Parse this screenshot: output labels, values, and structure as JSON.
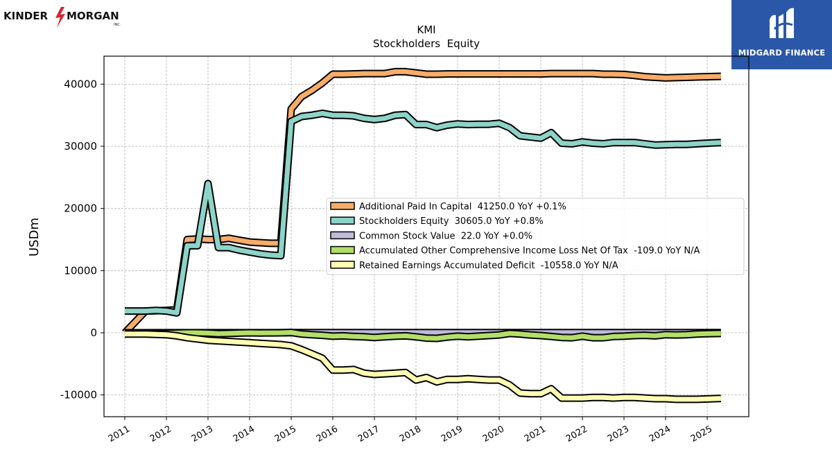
{
  "branding": {
    "left_logo_text_1": "KINDER",
    "left_logo_text_2": "MORGAN",
    "left_logo_sub": "INC.",
    "right_logo_text": "MIDGARD FINANCE",
    "right_logo_bg": "#2b57a8"
  },
  "chart_data": {
    "type": "line",
    "title": "KMI",
    "subtitle": "Stockholders  Equity",
    "ylabel": "USDm",
    "xlabel": "",
    "xlim": [
      2010.5,
      2026.0
    ],
    "ylim": [
      -13500,
      44500
    ],
    "yticks": [
      -10000,
      0,
      10000,
      20000,
      30000,
      40000
    ],
    "xticks": [
      "2011",
      "2012",
      "2013",
      "2014",
      "2015",
      "2016",
      "2017",
      "2018",
      "2019",
      "2020",
      "2021",
      "2022",
      "2023",
      "2024",
      "2025"
    ],
    "grid": true,
    "legend_position": "center-right",
    "series": [
      {
        "name": "Additional Paid In Capital  41250.0 YoY +0.1%",
        "color": "#f7ac6a",
        "points": [
          [
            2011.0,
            0
          ],
          [
            2011.5,
            3500
          ],
          [
            2012.0,
            3600
          ],
          [
            2012.25,
            3700
          ],
          [
            2012.5,
            15000
          ],
          [
            2012.75,
            15100
          ],
          [
            2013.0,
            15000
          ],
          [
            2013.25,
            15000
          ],
          [
            2013.5,
            15200
          ],
          [
            2013.75,
            14900
          ],
          [
            2014.0,
            14600
          ],
          [
            2014.25,
            14500
          ],
          [
            2014.5,
            14400
          ],
          [
            2014.75,
            14400
          ],
          [
            2015.0,
            36000
          ],
          [
            2015.25,
            38000
          ],
          [
            2015.5,
            39000
          ],
          [
            2015.75,
            40200
          ],
          [
            2016.0,
            41600
          ],
          [
            2016.25,
            41600
          ],
          [
            2016.5,
            41650
          ],
          [
            2016.75,
            41700
          ],
          [
            2017.0,
            41700
          ],
          [
            2017.25,
            41700
          ],
          [
            2017.5,
            42000
          ],
          [
            2017.75,
            42000
          ],
          [
            2018.0,
            41800
          ],
          [
            2018.25,
            41600
          ],
          [
            2018.5,
            41600
          ],
          [
            2018.75,
            41650
          ],
          [
            2019.0,
            41650
          ],
          [
            2019.25,
            41650
          ],
          [
            2019.5,
            41650
          ],
          [
            2019.75,
            41650
          ],
          [
            2020.0,
            41650
          ],
          [
            2020.25,
            41650
          ],
          [
            2020.5,
            41650
          ],
          [
            2020.75,
            41650
          ],
          [
            2021.0,
            41650
          ],
          [
            2021.25,
            41700
          ],
          [
            2021.5,
            41700
          ],
          [
            2021.75,
            41700
          ],
          [
            2022.0,
            41700
          ],
          [
            2022.25,
            41700
          ],
          [
            2022.5,
            41600
          ],
          [
            2022.75,
            41600
          ],
          [
            2023.0,
            41550
          ],
          [
            2023.25,
            41400
          ],
          [
            2023.5,
            41200
          ],
          [
            2023.75,
            41100
          ],
          [
            2024.0,
            41000
          ],
          [
            2024.25,
            41050
          ],
          [
            2024.5,
            41100
          ],
          [
            2024.75,
            41150
          ],
          [
            2025.0,
            41200
          ],
          [
            2025.33,
            41250
          ]
        ]
      },
      {
        "name": "Stockholders Equity  30605.0 YoY +0.8%",
        "color": "#8dd3c7",
        "points": [
          [
            2011.0,
            3500
          ],
          [
            2011.5,
            3500
          ],
          [
            2011.75,
            3600
          ],
          [
            2012.0,
            3500
          ],
          [
            2012.25,
            3200
          ],
          [
            2012.5,
            14000
          ],
          [
            2012.75,
            14000
          ],
          [
            2013.0,
            24000
          ],
          [
            2013.25,
            13700
          ],
          [
            2013.5,
            13700
          ],
          [
            2013.75,
            13300
          ],
          [
            2014.0,
            13000
          ],
          [
            2014.25,
            12700
          ],
          [
            2014.5,
            12500
          ],
          [
            2014.75,
            12400
          ],
          [
            2015.0,
            34000
          ],
          [
            2015.25,
            34800
          ],
          [
            2015.5,
            35000
          ],
          [
            2015.75,
            35300
          ],
          [
            2016.0,
            35000
          ],
          [
            2016.25,
            35000
          ],
          [
            2016.5,
            34900
          ],
          [
            2016.75,
            34500
          ],
          [
            2017.0,
            34300
          ],
          [
            2017.25,
            34500
          ],
          [
            2017.5,
            35000
          ],
          [
            2017.75,
            35100
          ],
          [
            2018.0,
            33500
          ],
          [
            2018.25,
            33500
          ],
          [
            2018.5,
            33000
          ],
          [
            2018.75,
            33400
          ],
          [
            2019.0,
            33600
          ],
          [
            2019.25,
            33500
          ],
          [
            2019.5,
            33550
          ],
          [
            2019.75,
            33550
          ],
          [
            2020.0,
            33700
          ],
          [
            2020.25,
            33000
          ],
          [
            2020.5,
            31700
          ],
          [
            2020.75,
            31500
          ],
          [
            2021.0,
            31300
          ],
          [
            2021.25,
            32200
          ],
          [
            2021.5,
            30500
          ],
          [
            2021.75,
            30400
          ],
          [
            2022.0,
            30700
          ],
          [
            2022.25,
            30500
          ],
          [
            2022.5,
            30400
          ],
          [
            2022.75,
            30600
          ],
          [
            2023.0,
            30600
          ],
          [
            2023.25,
            30600
          ],
          [
            2023.5,
            30400
          ],
          [
            2023.75,
            30200
          ],
          [
            2024.0,
            30250
          ],
          [
            2024.25,
            30300
          ],
          [
            2024.5,
            30300
          ],
          [
            2024.75,
            30400
          ],
          [
            2025.0,
            30500
          ],
          [
            2025.33,
            30605
          ]
        ]
      },
      {
        "name": "Common Stock Value  22.0 YoY +0.0%",
        "color": "#bebada",
        "points": [
          [
            2011.0,
            0
          ],
          [
            2012.0,
            10
          ],
          [
            2013.0,
            10
          ],
          [
            2014.0,
            10
          ],
          [
            2015.0,
            21
          ],
          [
            2016.0,
            22
          ],
          [
            2017.0,
            22
          ],
          [
            2018.0,
            22
          ],
          [
            2019.0,
            22
          ],
          [
            2020.0,
            22
          ],
          [
            2021.0,
            22
          ],
          [
            2022.0,
            22
          ],
          [
            2023.0,
            22
          ],
          [
            2024.0,
            22
          ],
          [
            2025.33,
            22
          ]
        ]
      },
      {
        "name": "Accumulated Other Comprehensive Income Loss Net Of Tax  -109.0 YoY N/A",
        "color": "#b3de69",
        "points": [
          [
            2011.0,
            -100
          ],
          [
            2011.5,
            0
          ],
          [
            2012.0,
            -100
          ],
          [
            2012.25,
            -50
          ],
          [
            2012.5,
            0
          ],
          [
            2012.75,
            0
          ],
          [
            2013.0,
            -50
          ],
          [
            2013.25,
            -150
          ],
          [
            2013.5,
            -100
          ],
          [
            2013.75,
            -50
          ],
          [
            2014.0,
            0
          ],
          [
            2014.25,
            -30
          ],
          [
            2014.5,
            -20
          ],
          [
            2014.75,
            0
          ],
          [
            2015.0,
            50
          ],
          [
            2015.25,
            -200
          ],
          [
            2015.5,
            -300
          ],
          [
            2015.75,
            -400
          ],
          [
            2016.0,
            -550
          ],
          [
            2016.25,
            -500
          ],
          [
            2016.5,
            -600
          ],
          [
            2016.75,
            -650
          ],
          [
            2017.0,
            -750
          ],
          [
            2017.25,
            -650
          ],
          [
            2017.5,
            -550
          ],
          [
            2017.75,
            -500
          ],
          [
            2018.0,
            -650
          ],
          [
            2018.25,
            -850
          ],
          [
            2018.5,
            -900
          ],
          [
            2018.75,
            -700
          ],
          [
            2019.0,
            -550
          ],
          [
            2019.25,
            -650
          ],
          [
            2019.5,
            -550
          ],
          [
            2019.75,
            -450
          ],
          [
            2020.0,
            -350
          ],
          [
            2020.25,
            -100
          ],
          [
            2020.5,
            -200
          ],
          [
            2020.75,
            -350
          ],
          [
            2021.0,
            -450
          ],
          [
            2021.25,
            -600
          ],
          [
            2021.5,
            -750
          ],
          [
            2021.75,
            -800
          ],
          [
            2022.0,
            -550
          ],
          [
            2022.25,
            -800
          ],
          [
            2022.5,
            -800
          ],
          [
            2022.75,
            -600
          ],
          [
            2023.0,
            -550
          ],
          [
            2023.25,
            -450
          ],
          [
            2023.5,
            -400
          ],
          [
            2023.75,
            -500
          ],
          [
            2024.0,
            -300
          ],
          [
            2024.25,
            -350
          ],
          [
            2024.5,
            -300
          ],
          [
            2024.75,
            -200
          ],
          [
            2025.0,
            -150
          ],
          [
            2025.33,
            -109
          ]
        ]
      },
      {
        "name": "Retained Earnings Accumulated Deficit  -10558.0 YoY N/A",
        "color": "#ffffb3",
        "points": [
          [
            2011.0,
            -200
          ],
          [
            2011.5,
            -200
          ],
          [
            2012.0,
            -300
          ],
          [
            2012.25,
            -500
          ],
          [
            2012.5,
            -800
          ],
          [
            2012.75,
            -1000
          ],
          [
            2013.0,
            -1200
          ],
          [
            2013.25,
            -1300
          ],
          [
            2013.5,
            -1400
          ],
          [
            2013.75,
            -1500
          ],
          [
            2014.0,
            -1600
          ],
          [
            2014.25,
            -1700
          ],
          [
            2014.5,
            -1800
          ],
          [
            2014.75,
            -1900
          ],
          [
            2015.0,
            -2100
          ],
          [
            2015.25,
            -2700
          ],
          [
            2015.5,
            -3400
          ],
          [
            2015.75,
            -4100
          ],
          [
            2016.0,
            -6000
          ],
          [
            2016.25,
            -6000
          ],
          [
            2016.5,
            -5900
          ],
          [
            2016.75,
            -6500
          ],
          [
            2017.0,
            -6700
          ],
          [
            2017.25,
            -6600
          ],
          [
            2017.5,
            -6500
          ],
          [
            2017.75,
            -6400
          ],
          [
            2018.0,
            -7600
          ],
          [
            2018.25,
            -7200
          ],
          [
            2018.5,
            -7900
          ],
          [
            2018.75,
            -7500
          ],
          [
            2019.0,
            -7500
          ],
          [
            2019.25,
            -7400
          ],
          [
            2019.5,
            -7500
          ],
          [
            2019.75,
            -7600
          ],
          [
            2020.0,
            -7600
          ],
          [
            2020.25,
            -8400
          ],
          [
            2020.5,
            -9700
          ],
          [
            2020.75,
            -9800
          ],
          [
            2021.0,
            -9800
          ],
          [
            2021.25,
            -9000
          ],
          [
            2021.5,
            -10500
          ],
          [
            2021.75,
            -10500
          ],
          [
            2022.0,
            -10500
          ],
          [
            2022.25,
            -10400
          ],
          [
            2022.5,
            -10400
          ],
          [
            2022.75,
            -10500
          ],
          [
            2023.0,
            -10400
          ],
          [
            2023.25,
            -10400
          ],
          [
            2023.5,
            -10500
          ],
          [
            2023.75,
            -10600
          ],
          [
            2024.0,
            -10600
          ],
          [
            2024.25,
            -10700
          ],
          [
            2024.5,
            -10700
          ],
          [
            2024.75,
            -10700
          ],
          [
            2025.0,
            -10650
          ],
          [
            2025.33,
            -10558
          ]
        ]
      }
    ]
  }
}
